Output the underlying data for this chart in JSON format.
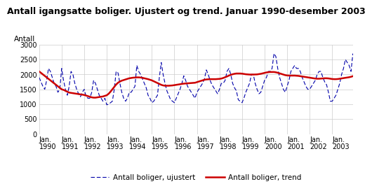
{
  "title": "Antall igangsatte boliger. Ujustert og trend. Januar 1990-desember 2003",
  "ylabel": "Antall",
  "ylim": [
    0,
    3000
  ],
  "yticks": [
    0,
    500,
    1000,
    1500,
    2000,
    2500,
    3000
  ],
  "background_color": "#ffffff",
  "grid_color": "#cccccc",
  "unadjusted_color": "#0000aa",
  "trend_color": "#cc0000",
  "legend_labels": [
    "Antall boliger, ujustert",
    "Antall boliger, trend"
  ],
  "unadjusted": [
    1900,
    1750,
    1600,
    1500,
    1800,
    2200,
    2100,
    1900,
    1700,
    1600,
    1400,
    1500,
    2200,
    1800,
    1500,
    1300,
    1600,
    2100,
    2000,
    1700,
    1500,
    1350,
    1250,
    1400,
    1500,
    1250,
    1200,
    1200,
    1400,
    1800,
    1700,
    1500,
    1300,
    1200,
    1100,
    1200,
    980,
    1000,
    1050,
    1100,
    1500,
    2100,
    2050,
    1700,
    1400,
    1200,
    1100,
    1200,
    1400,
    1400,
    1500,
    1600,
    2300,
    2100,
    2000,
    1850,
    1700,
    1550,
    1300,
    1200,
    1050,
    1100,
    1200,
    1300,
    1900,
    2400,
    2000,
    1700,
    1450,
    1300,
    1150,
    1100,
    1050,
    1200,
    1350,
    1500,
    1700,
    1950,
    1800,
    1600,
    1500,
    1400,
    1300,
    1200,
    1400,
    1500,
    1600,
    1700,
    1850,
    2150,
    2000,
    1800,
    1650,
    1550,
    1450,
    1350,
    1500,
    1700,
    1700,
    1800,
    2100,
    2200,
    2000,
    1700,
    1550,
    1450,
    1150,
    1100,
    1050,
    1200,
    1400,
    1550,
    1700,
    2000,
    2000,
    1700,
    1500,
    1350,
    1400,
    1600,
    1800,
    1900,
    2100,
    2100,
    2200,
    2700,
    2600,
    2200,
    1900,
    1700,
    1500,
    1400,
    1600,
    1800,
    2100,
    2200,
    2300,
    2200,
    2200,
    2100,
    1900,
    1750,
    1600,
    1500,
    1500,
    1600,
    1700,
    1800,
    2000,
    2100,
    2100,
    1900,
    1750,
    1650,
    1400,
    1100,
    1100,
    1200,
    1300,
    1500,
    1700,
    2000,
    2200,
    2500,
    2400,
    2300,
    2100,
    2700
  ],
  "trend": [
    2100,
    2050,
    2000,
    1950,
    1900,
    1850,
    1800,
    1750,
    1700,
    1650,
    1600,
    1550,
    1500,
    1480,
    1450,
    1420,
    1390,
    1380,
    1370,
    1360,
    1350,
    1340,
    1330,
    1320,
    1310,
    1290,
    1270,
    1250,
    1230,
    1220,
    1220,
    1230,
    1240,
    1250,
    1260,
    1280,
    1300,
    1350,
    1420,
    1500,
    1580,
    1660,
    1720,
    1760,
    1790,
    1810,
    1830,
    1850,
    1870,
    1880,
    1890,
    1895,
    1900,
    1900,
    1895,
    1885,
    1870,
    1855,
    1840,
    1820,
    1800,
    1770,
    1740,
    1710,
    1680,
    1650,
    1630,
    1620,
    1620,
    1620,
    1625,
    1630,
    1640,
    1650,
    1660,
    1670,
    1680,
    1690,
    1695,
    1700,
    1705,
    1710,
    1715,
    1720,
    1740,
    1760,
    1780,
    1800,
    1820,
    1830,
    1835,
    1840,
    1840,
    1840,
    1840,
    1845,
    1850,
    1860,
    1880,
    1905,
    1930,
    1960,
    1985,
    2005,
    2020,
    2030,
    2030,
    2030,
    2025,
    2015,
    2005,
    2000,
    1995,
    1995,
    1995,
    1998,
    2000,
    2010,
    2020,
    2035,
    2050,
    2065,
    2075,
    2080,
    2080,
    2080,
    2070,
    2055,
    2035,
    2015,
    1995,
    1975,
    1965,
    1960,
    1960,
    1960,
    1960,
    1955,
    1950,
    1940,
    1930,
    1920,
    1910,
    1900,
    1890,
    1880,
    1870,
    1860,
    1855,
    1855,
    1860,
    1865,
    1870,
    1870,
    1865,
    1855,
    1845,
    1840,
    1840,
    1845,
    1855,
    1865,
    1875,
    1885,
    1895,
    1905,
    1920,
    1940
  ],
  "x_tick_positions": [
    0,
    12,
    24,
    36,
    48,
    60,
    72,
    84,
    96,
    108,
    120,
    132,
    144,
    156
  ],
  "x_tick_labels": [
    "Jan.\n1990",
    "Jan.\n1991",
    "Jan.\n1992",
    "Jan.\n1993",
    "Jan.\n1994",
    "Jan.\n1995",
    "Jan.\n1996",
    "Jan.\n1997",
    "Jan.\n1998",
    "Jan.\n1999",
    "Jan.\n2000",
    "Jan.\n2001",
    "Jan.\n2002",
    "Jan.\n2003"
  ],
  "title_fontsize": 9,
  "title_fontweight": "bold",
  "tick_fontsize": 7,
  "ylabel_fontsize": 7.5,
  "legend_fontsize": 7.5
}
